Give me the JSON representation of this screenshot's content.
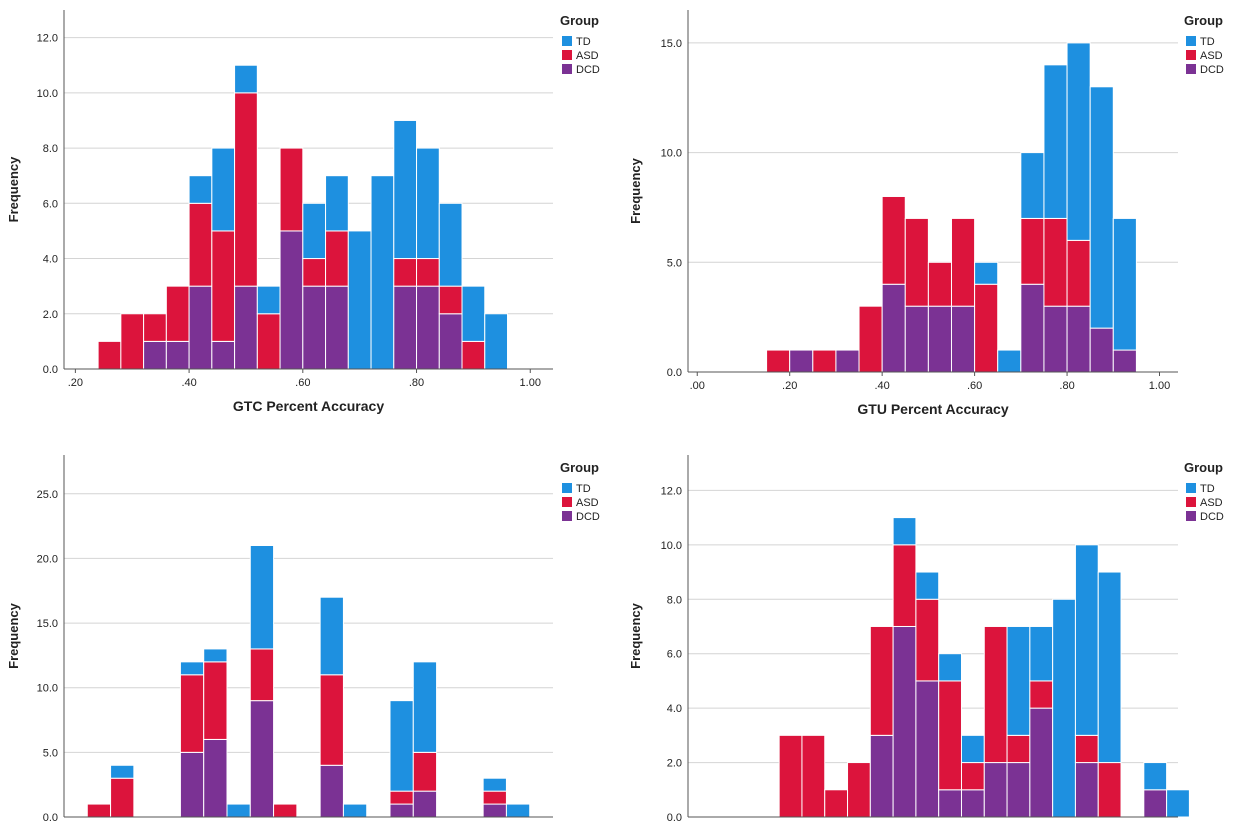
{
  "colors": {
    "TD": "#1e90e0",
    "ASD": "#dc143c",
    "DCD": "#7b3294",
    "grid": "#d4d4d4",
    "axis": "#555555"
  },
  "chart_data": [
    {
      "type": "bar",
      "title": "",
      "xlabel": "GTC Percent Accuracy",
      "ylabel": "Frequency",
      "ylim": [
        0,
        13
      ],
      "yticks": [
        0,
        2,
        4,
        6,
        8,
        10,
        12
      ],
      "ytick_labels": [
        "0.0",
        "2.0",
        "4.0",
        "6.0",
        "8.0",
        "10.0",
        "12.0"
      ],
      "xlim": [
        0.18,
        1.04
      ],
      "xticks": [
        0.2,
        0.4,
        0.6,
        0.8,
        1.0
      ],
      "xtick_labels": [
        ".20",
        ".40",
        ".60",
        ".80",
        "1.00"
      ],
      "bin_start": 0.24,
      "bin_width": 0.04,
      "legend": {
        "title": "Group",
        "position": "top-right"
      },
      "series": [
        {
          "name": "TD",
          "values": [
            0,
            0,
            0,
            0,
            1,
            3,
            1,
            1,
            0,
            2,
            2,
            5,
            7,
            5,
            4,
            3,
            2,
            2
          ]
        },
        {
          "name": "ASD",
          "values": [
            1,
            2,
            1,
            2,
            3,
            4,
            7,
            2,
            3,
            1,
            2,
            0,
            0,
            1,
            1,
            1,
            1,
            0
          ]
        },
        {
          "name": "DCD",
          "values": [
            0,
            0,
            1,
            1,
            3,
            1,
            3,
            0,
            5,
            3,
            3,
            0,
            0,
            3,
            3,
            2,
            0,
            0
          ]
        }
      ]
    },
    {
      "type": "bar",
      "title": "",
      "xlabel": "GTU Percent Accuracy",
      "ylabel": "Frequency",
      "ylim": [
        0,
        16.5
      ],
      "yticks": [
        0,
        5,
        10,
        15
      ],
      "ytick_labels": [
        "0.0",
        "5.0",
        "10.0",
        "15.0"
      ],
      "xlim": [
        -0.02,
        1.04
      ],
      "xticks": [
        0,
        0.2,
        0.4,
        0.6,
        0.8,
        1.0
      ],
      "xtick_labels": [
        ".00",
        ".20",
        ".40",
        ".60",
        ".80",
        "1.00"
      ],
      "bin_start": 0.15,
      "bin_width": 0.05,
      "legend": {
        "title": "Group",
        "position": "top-right"
      },
      "series": [
        {
          "name": "TD",
          "values": [
            0,
            0,
            0,
            0,
            0,
            0,
            0,
            0,
            0,
            1,
            1,
            3,
            7,
            9,
            11,
            6
          ]
        },
        {
          "name": "ASD",
          "values": [
            1,
            0,
            1,
            0,
            3,
            4,
            4,
            2,
            4,
            4,
            0,
            3,
            4,
            3,
            0,
            0
          ]
        },
        {
          "name": "DCD",
          "values": [
            0,
            1,
            0,
            1,
            0,
            4,
            3,
            3,
            3,
            0,
            0,
            4,
            3,
            3,
            2,
            1
          ]
        }
      ]
    },
    {
      "type": "bar",
      "title": "",
      "xlabel": "",
      "ylabel": "Frequency",
      "ylim": [
        0,
        28
      ],
      "yticks": [
        0,
        5,
        10,
        15,
        20,
        25
      ],
      "ytick_labels": [
        "0.0",
        "5.0",
        "10.0",
        "15.0",
        "20.0",
        "25.0"
      ],
      "xlim": [
        0,
        21
      ],
      "xticks": [],
      "xtick_labels": [],
      "bin_start": 1,
      "bin_width": 1,
      "legend": {
        "title": "Group",
        "position": "top-right"
      },
      "series": [
        {
          "name": "TD",
          "values": [
            0,
            1,
            0,
            0,
            1,
            1,
            1,
            8,
            0,
            0,
            6,
            1,
            0,
            7,
            7,
            0,
            0,
            1,
            1
          ]
        },
        {
          "name": "ASD",
          "values": [
            1,
            3,
            0,
            0,
            6,
            6,
            0,
            4,
            1,
            0,
            7,
            0,
            0,
            1,
            3,
            0,
            0,
            1,
            0
          ]
        },
        {
          "name": "DCD",
          "values": [
            0,
            0,
            0,
            0,
            5,
            6,
            0,
            9,
            0,
            0,
            4,
            0,
            0,
            1,
            2,
            0,
            0,
            1,
            0
          ]
        }
      ]
    },
    {
      "type": "bar",
      "title": "",
      "xlabel": "",
      "ylabel": "Frequency",
      "ylim": [
        0,
        13.3
      ],
      "yticks": [
        0,
        2,
        4,
        6,
        8,
        10,
        12
      ],
      "ytick_labels": [
        "0.0",
        "2.0",
        "4.0",
        "6.0",
        "8.0",
        "10.0",
        "12.0"
      ],
      "xlim": [
        0,
        21.5
      ],
      "xticks": [],
      "xtick_labels": [],
      "bin_start": 4,
      "bin_width": 1,
      "legend": {
        "title": "Group",
        "position": "top-right"
      },
      "series": [
        {
          "name": "TD",
          "values": [
            0,
            0,
            0,
            0,
            0,
            1,
            1,
            1,
            1,
            0,
            4,
            2,
            8,
            7,
            7,
            0,
            1,
            1
          ]
        },
        {
          "name": "ASD",
          "values": [
            3,
            3,
            1,
            2,
            4,
            3,
            3,
            4,
            1,
            5,
            1,
            1,
            0,
            1,
            2,
            0,
            0,
            0
          ]
        },
        {
          "name": "DCD",
          "values": [
            0,
            0,
            0,
            0,
            3,
            7,
            5,
            1,
            1,
            2,
            2,
            4,
            0,
            2,
            0,
            0,
            1,
            0
          ]
        }
      ]
    }
  ]
}
